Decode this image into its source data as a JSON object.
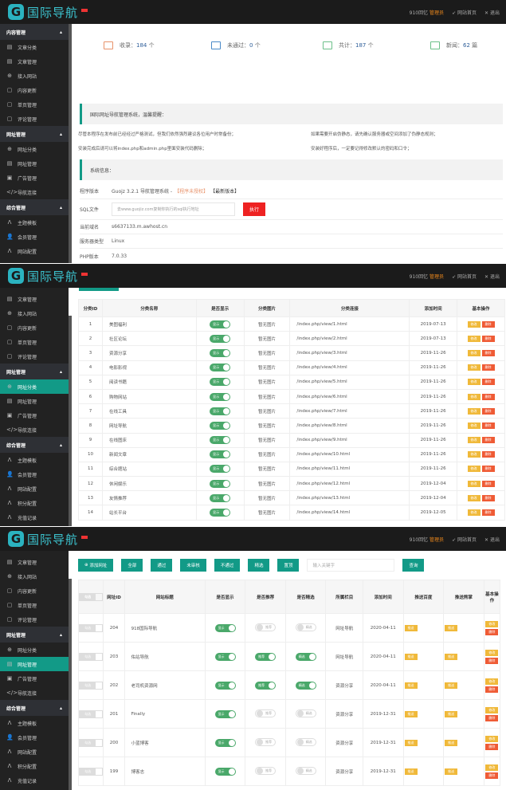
{
  "brand": {
    "logo_text": "国际导航",
    "accent": "#129a87"
  },
  "header": {
    "user": "910回忆",
    "role": "管理员",
    "site_home": "网站首页",
    "logout": "退出"
  },
  "sidebar": [
    {
      "group": "内容管理",
      "items": [
        {
          "label": "文章分类",
          "icon": "list-icon"
        },
        {
          "label": "文章管理",
          "icon": "list-icon"
        },
        {
          "label": "接入网站",
          "icon": "plus-circle-icon"
        },
        {
          "label": "内容更新",
          "icon": "doc-icon"
        },
        {
          "label": "单页管理",
          "icon": "doc-icon"
        },
        {
          "label": "评论管理",
          "icon": "doc-icon"
        }
      ]
    },
    {
      "group": "网址管理",
      "items": [
        {
          "label": "网址分类",
          "icon": "plus-circle-icon"
        },
        {
          "label": "网址管理",
          "icon": "list-icon"
        },
        {
          "label": "广告管理",
          "icon": "image-icon"
        },
        {
          "label": "导航连接",
          "icon": "code-icon"
        }
      ]
    },
    {
      "group": "综合管理",
      "items": [
        {
          "label": "主题模板",
          "icon": "pulse-icon"
        },
        {
          "label": "会员管理",
          "icon": "user-icon"
        },
        {
          "label": "网站配置",
          "icon": "pulse-icon"
        },
        {
          "label": "积分配置",
          "icon": "pulse-icon"
        },
        {
          "label": "充值记录",
          "icon": "pulse-icon"
        },
        {
          "label": "清理缓存",
          "icon": "trash-icon"
        }
      ]
    }
  ],
  "dashboard": {
    "stats": [
      {
        "label": "收录：",
        "value": "184",
        "unit": "个",
        "color": "#e8926a"
      },
      {
        "label": "未通过：",
        "value": "0",
        "unit": "个",
        "color": "#4a8ac8"
      },
      {
        "label": "共计：",
        "value": "187",
        "unit": "个",
        "color": "#6cc08a"
      },
      {
        "label": "新闻：",
        "value": "62",
        "unit": "篇",
        "color": "#6cc08a"
      }
    ],
    "notice_title": "国际网址导航管理系统，温馨提醒：",
    "tips": [
      "尽管本程序在发布前已经经过严格测试，但我们依然强烈建议各位用户时常备份；",
      "如果需要开启伪静态，请先确认服务器或空间添加了伪静态规则；",
      "安装完成后请可以将index.php和admin.php里面安装代码删除；",
      "安装好程序后，一定要记得修改默认的密码和口令；"
    ],
    "sysinfo_title": "系统信息：",
    "version_label": "程序版本",
    "version_value": "Guojz 3.2.1 导航管理系统 -",
    "version_link": "【程序未授权】",
    "version_latest": "【最新版本】",
    "sql_label": "SQL文件",
    "sql_placeholder": "去www.guojiz.com复制你执行的sql执行地址",
    "sql_button": "执行",
    "domain_label": "当前域名",
    "domain_value": "s6637133.m.awhost.cn",
    "server_label": "服务器类型",
    "server_value": "Linux",
    "php_label": "PHP版本",
    "php_value": "7.0.33"
  },
  "category_table": {
    "headers": [
      "分类ID",
      "分类名称",
      "是否显示",
      "分类图片",
      "分类连接",
      "添加时间",
      "基本操作"
    ],
    "show_label": "显示",
    "no_image": "暂无图片",
    "edit_label": "修改",
    "delete_label": "删除",
    "rows": [
      [
        "1",
        "美图福利",
        "/index.php/view/1.html",
        "2019-07-13"
      ],
      [
        "2",
        "社区论坛",
        "/index.php/view/2.html",
        "2019-07-13"
      ],
      [
        "3",
        "资源分享",
        "/index.php/view/3.html",
        "2019-11-26"
      ],
      [
        "4",
        "电影影视",
        "/index.php/view/4.html",
        "2019-11-26"
      ],
      [
        "5",
        "阅读书籍",
        "/index.php/view/5.html",
        "2019-11-26"
      ],
      [
        "6",
        "购物网站",
        "/index.php/view/6.html",
        "2019-11-26"
      ],
      [
        "7",
        "在线工具",
        "/index.php/view/7.html",
        "2019-11-26"
      ],
      [
        "8",
        "网址导航",
        "/index.php/view/8.html",
        "2019-11-26"
      ],
      [
        "9",
        "在线图床",
        "/index.php/view/9.html",
        "2019-11-26"
      ],
      [
        "10",
        "新闻文章",
        "/index.php/view/10.html",
        "2019-11-26"
      ],
      [
        "11",
        "综合题站",
        "/index.php/view/11.html",
        "2019-11-26"
      ],
      [
        "12",
        "休闲娱乐",
        "/index.php/view/12.html",
        "2019-12-04"
      ],
      [
        "13",
        "友情推荐",
        "/index.php/view/13.html",
        "2019-12-04"
      ],
      [
        "14",
        "站长平台",
        "/index.php/view/14.html",
        "2019-12-05"
      ]
    ]
  },
  "site_table": {
    "toolbar": {
      "add": "添加网址",
      "all": "全部",
      "pass": "通过",
      "pending": "未审核",
      "reject": "不通过",
      "featured": "精选",
      "top": "置顶",
      "search_placeholder": "输入关键字",
      "search": "查询"
    },
    "headers": [
      "勾选",
      "网址ID",
      "网站标题",
      "是否显示",
      "是否推荐",
      "是否精选",
      "所属栏目",
      "添加时间",
      "推送百度",
      "推送熊掌",
      "基本操作"
    ],
    "check_label": "勾选",
    "show_label": "显示",
    "rec_label": "推荐",
    "feat_label": "精选",
    "push_label": "推送",
    "edit_label": "修改",
    "delete_label": "删除",
    "rows": [
      {
        "id": "204",
        "title": "918国际导航",
        "rec": false,
        "feat": false,
        "column": "网址导航",
        "date": "2020-04-11"
      },
      {
        "id": "203",
        "title": "佑站导航",
        "rec": true,
        "feat": true,
        "column": "网址导航",
        "date": "2020-04-11"
      },
      {
        "id": "202",
        "title": "老司机资源网",
        "rec": true,
        "feat": true,
        "column": "资源分享",
        "date": "2020-04-11"
      },
      {
        "id": "201",
        "title": "Finally",
        "rec": false,
        "feat": false,
        "column": "资源分享",
        "date": "2019-12-31"
      },
      {
        "id": "200",
        "title": "小蓝博客",
        "rec": false,
        "feat": false,
        "column": "资源分享",
        "date": "2019-12-31"
      },
      {
        "id": "199",
        "title": "博客志",
        "rec": false,
        "feat": false,
        "column": "资源分享",
        "date": "2019-12-31"
      }
    ]
  }
}
